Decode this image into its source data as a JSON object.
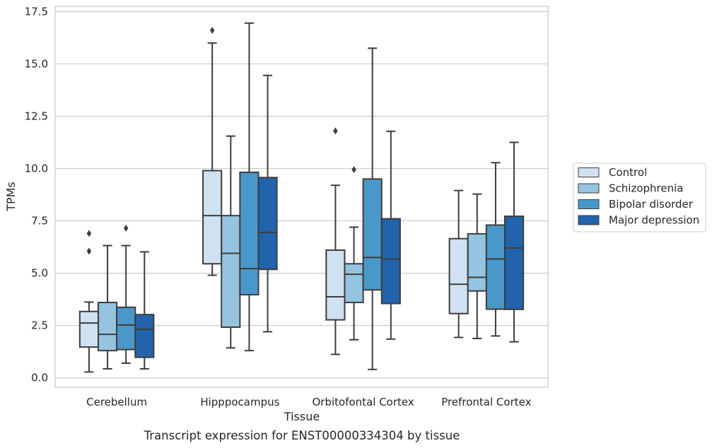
{
  "chart_data": {
    "type": "box",
    "title": "Transcript expression for ENST00000334304 by tissue",
    "xlabel": "Tissue",
    "ylabel": "TPMs",
    "ylim": [
      -0.45,
      17.75
    ],
    "yticks": [
      0.0,
      2.5,
      5.0,
      7.5,
      10.0,
      12.5,
      15.0,
      17.5
    ],
    "ytick_labels": [
      "0.0",
      "2.5",
      "5.0",
      "7.5",
      "10.0",
      "12.5",
      "15.0",
      "17.5"
    ],
    "grid": "horizontal",
    "legend_position": "right",
    "categories": [
      "Cerebellum",
      "Hipppocampus",
      "Orbitofontal Cortex",
      "Prefrontal Cortex"
    ],
    "series": [
      {
        "name": "Control",
        "color": "#d0e1f2",
        "boxes": [
          {
            "whisker_low": 0.28,
            "q1": 1.47,
            "median": 2.62,
            "q3": 3.17,
            "whisker_high": 3.62,
            "outliers": [
              6.05,
              6.9
            ]
          },
          {
            "whisker_low": 4.9,
            "q1": 5.45,
            "median": 7.75,
            "q3": 9.9,
            "whisker_high": 16.0,
            "outliers": [
              16.6
            ]
          },
          {
            "whisker_low": 1.12,
            "q1": 2.77,
            "median": 3.87,
            "q3": 6.1,
            "whisker_high": 9.2,
            "outliers": [
              11.8
            ]
          },
          {
            "whisker_low": 1.93,
            "q1": 3.07,
            "median": 4.47,
            "q3": 6.65,
            "whisker_high": 8.95,
            "outliers": []
          }
        ]
      },
      {
        "name": "Schizophrenia",
        "color": "#94c4df",
        "boxes": [
          {
            "whisker_low": 0.43,
            "q1": 1.3,
            "median": 2.08,
            "q3": 3.6,
            "whisker_high": 6.32,
            "outliers": []
          },
          {
            "whisker_low": 1.43,
            "q1": 2.42,
            "median": 5.95,
            "q3": 7.75,
            "whisker_high": 11.55,
            "outliers": []
          },
          {
            "whisker_low": 1.82,
            "q1": 3.6,
            "median": 4.95,
            "q3": 5.45,
            "whisker_high": 7.2,
            "outliers": [
              9.95
            ]
          },
          {
            "whisker_low": 1.88,
            "q1": 4.15,
            "median": 4.8,
            "q3": 6.88,
            "whisker_high": 8.78,
            "outliers": []
          }
        ]
      },
      {
        "name": "Bipolar disorder",
        "color": "#4a98c9",
        "boxes": [
          {
            "whisker_low": 0.7,
            "q1": 1.35,
            "median": 2.52,
            "q3": 3.37,
            "whisker_high": 6.32,
            "outliers": [
              7.15
            ]
          },
          {
            "whisker_low": 1.3,
            "q1": 3.97,
            "median": 5.22,
            "q3": 9.82,
            "whisker_high": 16.95,
            "outliers": []
          },
          {
            "whisker_low": 0.4,
            "q1": 4.2,
            "median": 5.75,
            "q3": 9.5,
            "whisker_high": 15.75,
            "outliers": []
          },
          {
            "whisker_low": 2.0,
            "q1": 3.28,
            "median": 5.68,
            "q3": 7.3,
            "whisker_high": 10.28,
            "outliers": []
          }
        ]
      },
      {
        "name": "Major depression",
        "color": "#2164ab",
        "boxes": [
          {
            "whisker_low": 0.43,
            "q1": 0.98,
            "median": 2.32,
            "q3": 3.02,
            "whisker_high": 6.02,
            "outliers": []
          },
          {
            "whisker_low": 2.2,
            "q1": 5.18,
            "median": 6.95,
            "q3": 9.57,
            "whisker_high": 14.45,
            "outliers": []
          },
          {
            "whisker_low": 1.85,
            "q1": 3.55,
            "median": 5.68,
            "q3": 7.6,
            "whisker_high": 11.78,
            "outliers": []
          },
          {
            "whisker_low": 1.72,
            "q1": 3.27,
            "median": 6.2,
            "q3": 7.72,
            "whisker_high": 11.25,
            "outliers": []
          }
        ]
      }
    ]
  }
}
